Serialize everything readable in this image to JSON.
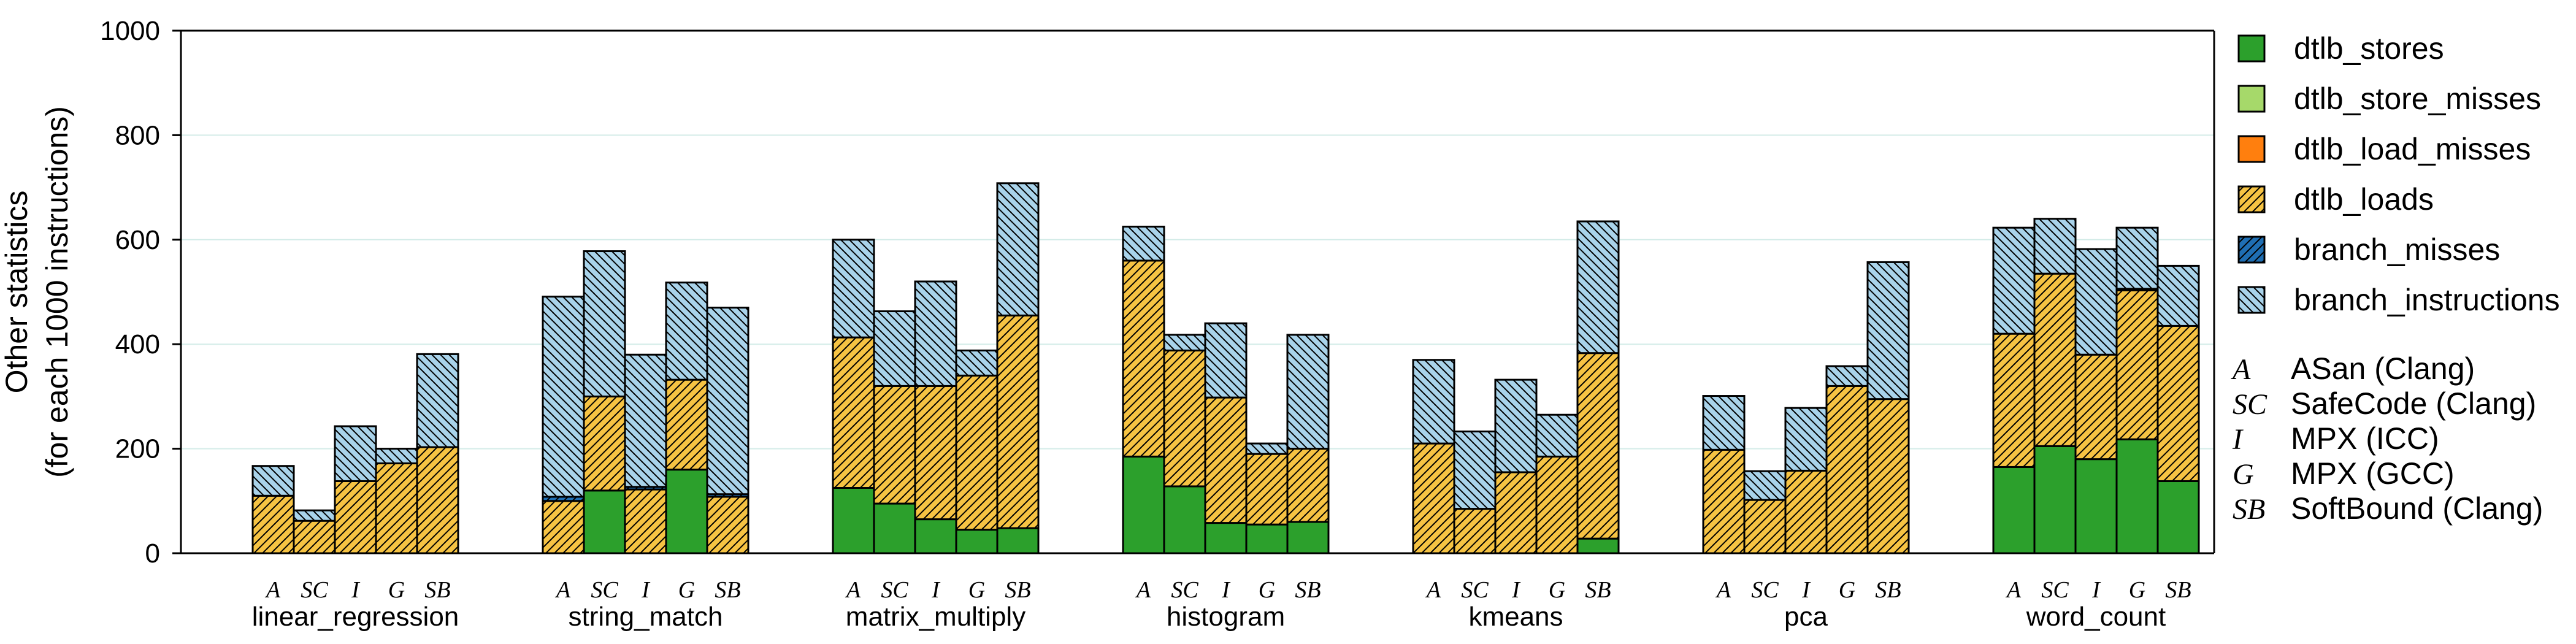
{
  "chart_data": {
    "type": "bar",
    "stacked": true,
    "ylabel_line1": "Other statistics",
    "ylabel_line2": "(for each 1000 instructions)",
    "ylim": [
      0,
      1000
    ],
    "yticks": [
      "0",
      "200",
      "400",
      "600",
      "800",
      "1000"
    ],
    "grid": "horizontal",
    "legend_position": "right",
    "bar_labels": [
      "A",
      "SC",
      "I",
      "G",
      "SB"
    ],
    "groups": [
      "linear_regression",
      "string_match",
      "matrix_multiply",
      "histogram",
      "kmeans",
      "pca",
      "word_count"
    ],
    "series": [
      {
        "name": "dtlb_stores",
        "color": "#2ca02c",
        "hatch": "none",
        "values": [
          [
            0,
            0,
            0,
            0,
            0
          ],
          [
            0,
            120,
            0,
            160,
            0
          ],
          [
            125,
            95,
            65,
            45,
            48
          ],
          [
            185,
            128,
            58,
            55,
            60
          ],
          [
            0,
            0,
            0,
            0,
            28
          ],
          [
            0,
            0,
            0,
            0,
            0
          ],
          [
            165,
            205,
            180,
            218,
            138
          ]
        ]
      },
      {
        "name": "dtlb_store_misses",
        "color": "#a6d96a",
        "hatch": "none",
        "values": [
          [
            0,
            0,
            0,
            0,
            0
          ],
          [
            0,
            0,
            0,
            0,
            0
          ],
          [
            0,
            0,
            0,
            0,
            0
          ],
          [
            0,
            0,
            0,
            0,
            0
          ],
          [
            0,
            0,
            0,
            0,
            0
          ],
          [
            0,
            0,
            0,
            0,
            0
          ],
          [
            0,
            0,
            0,
            0,
            0
          ]
        ]
      },
      {
        "name": "dtlb_load_misses",
        "color": "#ff7f0e",
        "hatch": "none",
        "values": [
          [
            0,
            0,
            0,
            0,
            0
          ],
          [
            0,
            0,
            0,
            0,
            0
          ],
          [
            0,
            0,
            0,
            0,
            0
          ],
          [
            0,
            0,
            0,
            0,
            0
          ],
          [
            0,
            0,
            0,
            0,
            0
          ],
          [
            0,
            0,
            0,
            0,
            0
          ],
          [
            0,
            0,
            0,
            0,
            0
          ]
        ]
      },
      {
        "name": "dtlb_loads",
        "color": "#f6c343",
        "hatch": "forward",
        "values": [
          [
            110,
            62,
            138,
            172,
            203
          ],
          [
            100,
            180,
            122,
            172,
            108
          ],
          [
            288,
            225,
            255,
            295,
            407
          ],
          [
            375,
            260,
            240,
            135,
            140
          ],
          [
            210,
            85,
            155,
            185,
            355
          ],
          [
            198,
            102,
            158,
            320,
            295
          ],
          [
            255,
            330,
            200,
            285,
            297
          ]
        ]
      },
      {
        "name": "branch_misses",
        "color": "#1f6fb4",
        "hatch": "forward",
        "values": [
          [
            0,
            0,
            0,
            0,
            0
          ],
          [
            8,
            0,
            5,
            0,
            5
          ],
          [
            0,
            0,
            0,
            0,
            0
          ],
          [
            0,
            0,
            0,
            0,
            0
          ],
          [
            0,
            0,
            0,
            0,
            0
          ],
          [
            0,
            0,
            0,
            0,
            0
          ],
          [
            0,
            0,
            0,
            3,
            0
          ]
        ]
      },
      {
        "name": "branch_instructions",
        "color": "#a9d3ea",
        "hatch": "back",
        "values": [
          [
            57,
            20,
            105,
            28,
            178
          ],
          [
            383,
            278,
            253,
            186,
            357
          ],
          [
            187,
            143,
            200,
            48,
            253
          ],
          [
            65,
            30,
            142,
            20,
            218
          ],
          [
            160,
            148,
            177,
            80,
            252
          ],
          [
            103,
            55,
            120,
            38,
            262
          ],
          [
            203,
            105,
            202,
            117,
            115
          ]
        ]
      }
    ],
    "legend_abbreviations": [
      {
        "abbr": "A",
        "label": "ASan (Clang)"
      },
      {
        "abbr": "SC",
        "label": "SafeCode (Clang)"
      },
      {
        "abbr": "I",
        "label": "MPX (ICC)"
      },
      {
        "abbr": "G",
        "label": "MPX (GCC)"
      },
      {
        "abbr": "SB",
        "label": "SoftBound (Clang)"
      }
    ]
  }
}
